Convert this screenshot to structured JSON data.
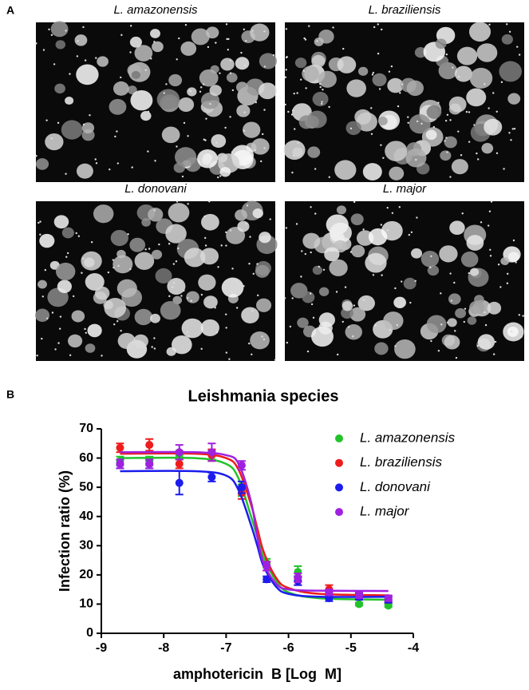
{
  "panel_a": {
    "label": "A",
    "images": [
      {
        "label": "L. amazonensis"
      },
      {
        "label": "L. braziliensis"
      },
      {
        "label": "L. donovani"
      },
      {
        "label": "L. major"
      }
    ]
  },
  "chart_data": {
    "type": "scatter",
    "panel_label": "B",
    "title": "Leishmania species",
    "x_label": "amphotericin  B [Log  M]",
    "y_label": "Infection ratio (%)",
    "xlim": [
      -9,
      -4
    ],
    "xticks": [
      -9,
      -8,
      -7,
      -6,
      -5,
      -4
    ],
    "ylim": [
      0,
      70
    ],
    "yticks": [
      0,
      10,
      20,
      30,
      40,
      50,
      60,
      70
    ],
    "x": [
      -8.7,
      -8.23,
      -7.75,
      -7.23,
      -6.75,
      -6.35,
      -5.85,
      -5.35,
      -4.87,
      -4.4
    ],
    "fit_x": [
      -8.7,
      -7.5,
      -7.0,
      -6.8,
      -6.6,
      -6.5,
      -6.4,
      -6.2,
      -6.0,
      -5.5,
      -4.4
    ],
    "series": [
      {
        "name": "L. amazonensis",
        "color": "#22c32a",
        "values": [
          59,
          59,
          61,
          61,
          49,
          24,
          21,
          14,
          10,
          9.5
        ],
        "errors": [
          1.5,
          1.5,
          1.5,
          1.5,
          2,
          1.5,
          2,
          1,
          0.5,
          0.5
        ],
        "fit": [
          60,
          60,
          58,
          53,
          40,
          33,
          26,
          18,
          14,
          12,
          11.5
        ]
      },
      {
        "name": "L. braziliensis",
        "color": "#ee1c1c",
        "values": [
          63.5,
          64.5,
          58,
          61,
          48,
          23,
          18,
          15,
          13,
          11.5
        ],
        "errors": [
          1.5,
          2,
          1.5,
          2,
          2,
          1.5,
          1.5,
          1.5,
          1,
          1
        ],
        "fit": [
          61.5,
          61.5,
          60,
          56,
          44,
          36,
          28,
          19,
          15.5,
          13.5,
          13
        ]
      },
      {
        "name": "L. donovani",
        "color": "#1c1cee",
        "values": [
          58,
          58,
          51.5,
          53.5,
          50,
          18.5,
          18,
          12,
          12.5,
          11.5
        ],
        "errors": [
          1.5,
          1.5,
          4,
          1.5,
          2,
          1,
          1.5,
          1,
          1,
          1
        ],
        "fit": [
          55.5,
          55.5,
          54,
          49,
          37,
          30,
          23,
          16,
          13.5,
          12.5,
          12.5
        ]
      },
      {
        "name": "L. major",
        "color": "#a020e0",
        "values": [
          58,
          58,
          62,
          62,
          57.5,
          23,
          19,
          14,
          13,
          12
        ],
        "errors": [
          1.5,
          1.5,
          2.5,
          3,
          1.5,
          1.5,
          1.5,
          1,
          1,
          1
        ],
        "fit": [
          62,
          62,
          61,
          58,
          45,
          33,
          24,
          17,
          15,
          14.6,
          14.5
        ]
      }
    ]
  }
}
